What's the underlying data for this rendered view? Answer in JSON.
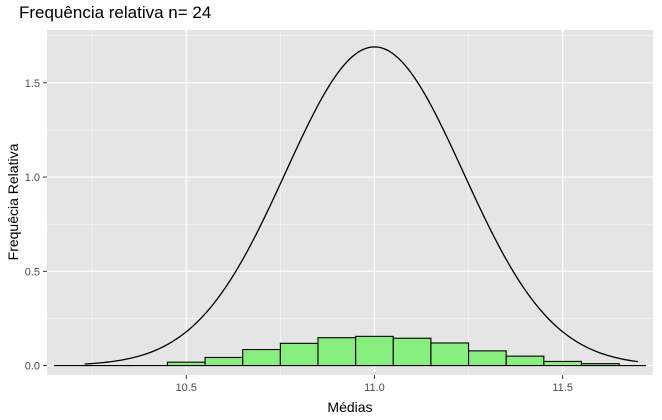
{
  "chart_data": {
    "type": "bar",
    "title": "Frequência relativa n= 24",
    "xlabel": "Médias",
    "ylabel": "Frequêcia Relativa",
    "xlim": [
      10.13,
      11.74
    ],
    "ylim": [
      -0.05,
      1.78
    ],
    "x_ticks": [
      10.5,
      11.0,
      11.5
    ],
    "x_tick_labels": [
      "10.5",
      "11.0",
      "11.5"
    ],
    "y_ticks": [
      0.0,
      0.5,
      1.0,
      1.5
    ],
    "y_tick_labels": [
      "0.0",
      "0.5",
      "1.0",
      "1.5"
    ],
    "grid": true,
    "bin_width": 0.1,
    "bins": [
      {
        "x0": 10.15,
        "x1": 10.25,
        "value": 0.0
      },
      {
        "x0": 10.25,
        "x1": 10.35,
        "value": 0.0
      },
      {
        "x0": 10.35,
        "x1": 10.45,
        "value": 0.0
      },
      {
        "x0": 10.45,
        "x1": 10.55,
        "value": 0.018
      },
      {
        "x0": 10.55,
        "x1": 10.65,
        "value": 0.043
      },
      {
        "x0": 10.65,
        "x1": 10.75,
        "value": 0.085
      },
      {
        "x0": 10.75,
        "x1": 10.85,
        "value": 0.118
      },
      {
        "x0": 10.85,
        "x1": 10.95,
        "value": 0.148
      },
      {
        "x0": 10.95,
        "x1": 11.05,
        "value": 0.155
      },
      {
        "x0": 11.05,
        "x1": 11.15,
        "value": 0.145
      },
      {
        "x0": 11.15,
        "x1": 11.25,
        "value": 0.12
      },
      {
        "x0": 11.25,
        "x1": 11.35,
        "value": 0.078
      },
      {
        "x0": 11.35,
        "x1": 11.45,
        "value": 0.05
      },
      {
        "x0": 11.45,
        "x1": 11.55,
        "value": 0.022
      },
      {
        "x0": 11.55,
        "x1": 11.65,
        "value": 0.01
      },
      {
        "x0": 11.65,
        "x1": 11.72,
        "value": 0.0
      }
    ],
    "density_curve": {
      "type": "normal",
      "mean": 11.0,
      "sd": 0.236,
      "x_range": [
        10.23,
        11.7
      ]
    },
    "colors": {
      "bar_fill": "#88ee7f",
      "bar_outline": "#000000",
      "panel_background": "#e5e5e5",
      "grid_major": "#ffffff",
      "curve": "#000000"
    }
  }
}
